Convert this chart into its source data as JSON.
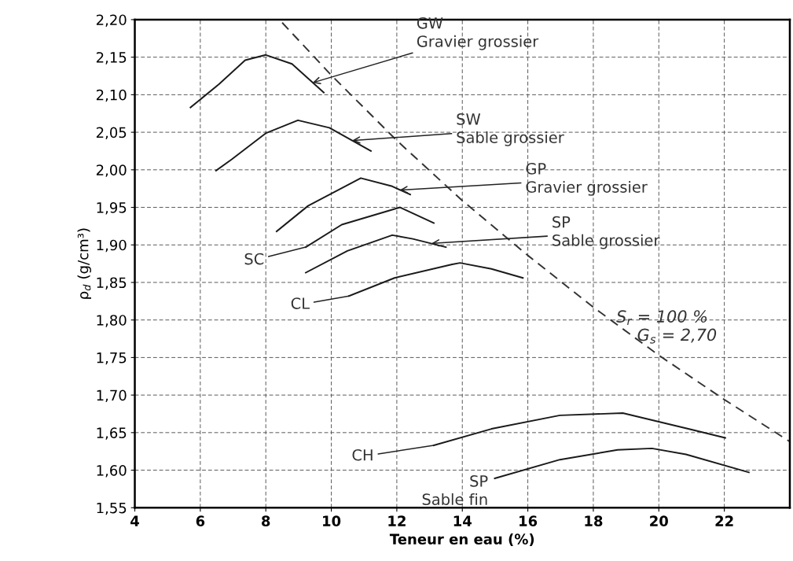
{
  "chart_data": {
    "type": "line",
    "xlabel": "Teneur en eau (%)",
    "ylabel": "ρ$_{d}$ (g/cm³)",
    "xlim": [
      4,
      24
    ],
    "xticks": [
      4,
      6,
      8,
      10,
      12,
      14,
      16,
      18,
      20,
      22
    ],
    "ylim": [
      1.55,
      2.2
    ],
    "yticks": [
      {
        "value": 1.55,
        "label": "1,55"
      },
      {
        "value": 1.6,
        "label": "1,60"
      },
      {
        "value": 1.65,
        "label": "1,65"
      },
      {
        "value": 1.7,
        "label": "1,70"
      },
      {
        "value": 1.75,
        "label": "1,75"
      },
      {
        "value": 1.8,
        "label": "1,80"
      },
      {
        "value": 1.85,
        "label": "1,85"
      },
      {
        "value": 1.9,
        "label": "1,90"
      },
      {
        "value": 1.95,
        "label": "1,95"
      },
      {
        "value": 2.0,
        "label": "2,00"
      },
      {
        "value": 2.05,
        "label": "2,05"
      },
      {
        "value": 2.1,
        "label": "2,10"
      },
      {
        "value": 2.15,
        "label": "2,15"
      },
      {
        "value": 2.2,
        "label": "2,20"
      }
    ],
    "grid": true,
    "legend": false,
    "marker": "none",
    "series": [
      {
        "color": "#1a1a1a",
        "x": [
          5.7,
          6.57,
          7.37,
          8.0,
          8.8,
          9.77
        ],
        "values": [
          2.083,
          2.114,
          2.146,
          2.153,
          2.141,
          2.103
        ]
      },
      {
        "color": "#1a1a1a",
        "x": [
          6.48,
          6.96,
          8.01,
          8.98,
          9.94,
          11.21
        ],
        "values": [
          1.999,
          2.014,
          2.049,
          2.066,
          2.056,
          2.025
        ]
      },
      {
        "color": "#1a1a1a",
        "x": [
          8.33,
          9.29,
          10.9,
          11.86,
          12.41
        ],
        "values": [
          1.918,
          1.952,
          1.989,
          1.978,
          1.967
        ]
      },
      {
        "color": "#1a1a1a",
        "x": [
          9.22,
          10.32,
          12.1,
          13.13
        ],
        "values": [
          1.897,
          1.927,
          1.95,
          1.929
        ]
      },
      {
        "color": "#1a1a1a",
        "x": [
          9.22,
          10.49,
          11.86,
          12.49,
          13.5
        ],
        "values": [
          1.863,
          1.892,
          1.913,
          1.908,
          1.897
        ]
      },
      {
        "color": "#1a1a1a",
        "x": [
          10.54,
          11.93,
          13.69,
          13.93,
          14.89,
          15.85
        ],
        "values": [
          1.832,
          1.856,
          1.874,
          1.876,
          1.868,
          1.856
        ]
      },
      {
        "color": "#1a1a1a",
        "x": [
          13.13,
          14.89,
          16.98,
          18.9,
          21.0,
          22.03
        ],
        "values": [
          1.633,
          1.655,
          1.673,
          1.676,
          1.654,
          1.643
        ]
      },
      {
        "color": "#1a1a1a",
        "x": [
          14.99,
          16.98,
          18.74,
          19.79,
          20.83,
          22.75
        ],
        "values": [
          1.589,
          1.614,
          1.627,
          1.629,
          1.621,
          1.597
        ]
      },
      {
        "color": "#333333",
        "line_style": "dashed",
        "x": [
          8.5,
          10,
          12,
          14,
          16,
          18,
          20,
          22,
          24
        ],
        "values": [
          2.196,
          2.126,
          2.039,
          1.959,
          1.886,
          1.817,
          1.753,
          1.694,
          1.638
        ]
      }
    ],
    "annotations": [
      {
        "text": "GW\nGravier grossier",
        "x": 9.43,
        "y": 2.116
      },
      {
        "text": "SW\nSable grossier",
        "x": 10.64,
        "y": 2.039
      },
      {
        "text": "GP\nGravier grossier",
        "x": 12.09,
        "y": 1.973
      },
      {
        "text": "SP\nSable grossier",
        "x": 13.06,
        "y": 1.902
      },
      {
        "text": "SC",
        "x": 9.22,
        "y": 1.897
      },
      {
        "text": "CL",
        "x": 10.54,
        "y": 1.832
      },
      {
        "text": "CH",
        "x": 13.13,
        "y": 1.633
      },
      {
        "text": "SP\nSable fin",
        "x": 14.99,
        "y": 1.589
      },
      "S$_{r}$ = 100 %\n    G$_{s}$ = 2,70"
    ]
  }
}
